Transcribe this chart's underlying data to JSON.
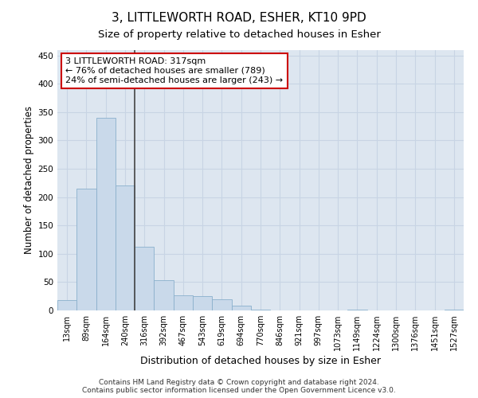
{
  "title": "3, LITTLEWORTH ROAD, ESHER, KT10 9PD",
  "subtitle": "Size of property relative to detached houses in Esher",
  "xlabel": "Distribution of detached houses by size in Esher",
  "ylabel": "Number of detached properties",
  "categories": [
    "13sqm",
    "89sqm",
    "164sqm",
    "240sqm",
    "316sqm",
    "392sqm",
    "467sqm",
    "543sqm",
    "619sqm",
    "694sqm",
    "770sqm",
    "846sqm",
    "921sqm",
    "997sqm",
    "1073sqm",
    "1149sqm",
    "1224sqm",
    "1300sqm",
    "1376sqm",
    "1451sqm",
    "1527sqm"
  ],
  "values": [
    18,
    215,
    340,
    220,
    113,
    53,
    26,
    25,
    20,
    8,
    1,
    0,
    0,
    0,
    0,
    1,
    0,
    0,
    0,
    0,
    1
  ],
  "bar_color": "#c9d9ea",
  "bar_edge_color": "#8ab0cc",
  "grid_color": "#c8d4e4",
  "background_color": "#dde6f0",
  "vline_x_index": 4,
  "vline_color": "#444444",
  "annotation_text": "3 LITTLEWORTH ROAD: 317sqm\n← 76% of detached houses are smaller (789)\n24% of semi-detached houses are larger (243) →",
  "annotation_box_facecolor": "#ffffff",
  "annotation_box_edgecolor": "#cc0000",
  "ylim": [
    0,
    460
  ],
  "yticks": [
    0,
    50,
    100,
    150,
    200,
    250,
    300,
    350,
    400,
    450
  ],
  "footer": "Contains HM Land Registry data © Crown copyright and database right 2024.\nContains public sector information licensed under the Open Government Licence v3.0.",
  "title_fontsize": 11,
  "subtitle_fontsize": 9.5,
  "tick_fontsize": 7,
  "ylabel_fontsize": 8.5,
  "xlabel_fontsize": 9,
  "footer_fontsize": 6.5,
  "annot_fontsize": 8
}
